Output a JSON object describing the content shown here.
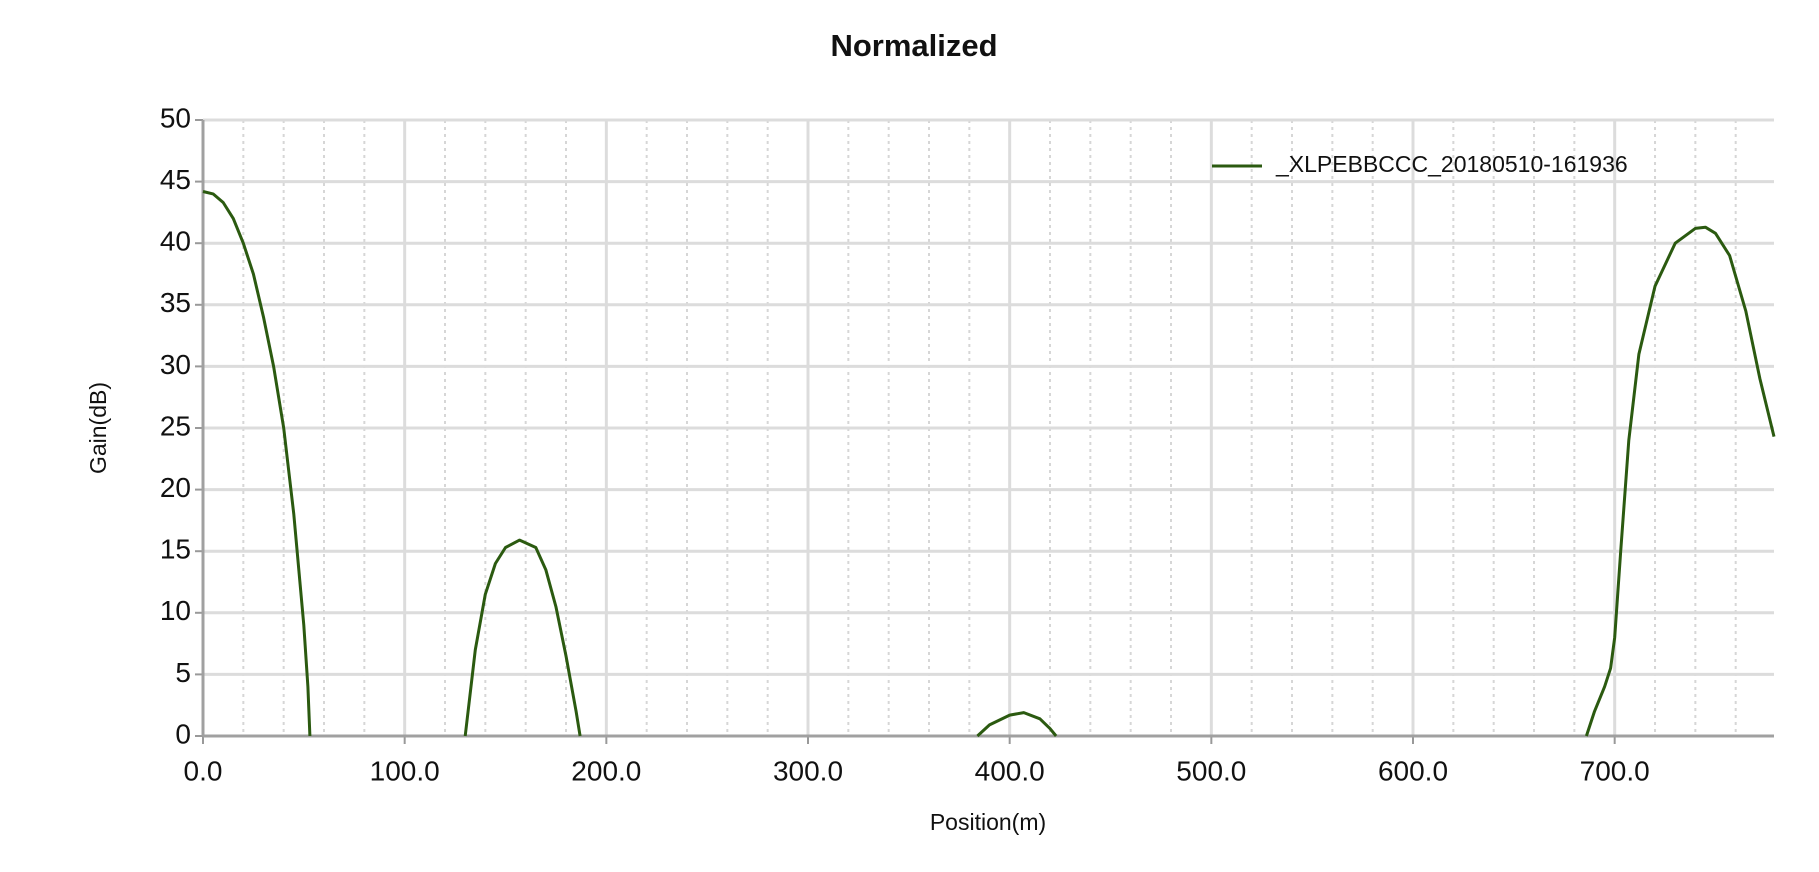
{
  "chart_data": {
    "type": "line",
    "title": "Normalized",
    "x_label": "Position(m)",
    "y_label": "Gain(dB)",
    "x": [
      0,
      5,
      10,
      15,
      20,
      25,
      30,
      35,
      40,
      45,
      50,
      52,
      53,
      90,
      130,
      135,
      140,
      145,
      150,
      157,
      165,
      170,
      175,
      180,
      185,
      187,
      300,
      384,
      390,
      400,
      407,
      415,
      420,
      423,
      550,
      686,
      690,
      695,
      698,
      700,
      703,
      707,
      712,
      720,
      730,
      740,
      745,
      750,
      757,
      765,
      772,
      779
    ],
    "series": [
      {
        "name": "_XLPEBBCCC_20180510-161936",
        "color": "#2b5a10",
        "values": [
          44.2,
          44,
          43.3,
          42,
          40,
          37.5,
          34,
          30,
          25,
          18,
          9,
          4,
          0,
          null,
          0,
          7,
          11.5,
          14,
          15.3,
          15.9,
          15.3,
          13.5,
          10.5,
          6.5,
          2,
          0,
          null,
          0,
          0.9,
          1.7,
          1.9,
          1.4,
          0.6,
          0,
          null,
          0,
          2,
          4,
          5.5,
          8,
          15,
          24,
          31,
          36.5,
          40,
          41.2,
          41.3,
          40.8,
          39,
          34.5,
          29,
          24.3
        ]
      }
    ],
    "xlim": [
      0,
      779
    ],
    "ylim": [
      0,
      50
    ],
    "xticks": [
      {
        "value": 0,
        "label": "0.0"
      },
      {
        "value": 100,
        "label": "100.0"
      },
      {
        "value": 200,
        "label": "200.0"
      },
      {
        "value": 300,
        "label": "300.0"
      },
      {
        "value": 400,
        "label": "400.0"
      },
      {
        "value": 500,
        "label": "500.0"
      },
      {
        "value": 600,
        "label": "600.0"
      },
      {
        "value": 700,
        "label": "700.0"
      }
    ],
    "yticks": [
      0,
      5,
      10,
      15,
      20,
      25,
      30,
      35,
      40,
      45,
      50
    ],
    "grid": true,
    "legend": "upper right"
  }
}
